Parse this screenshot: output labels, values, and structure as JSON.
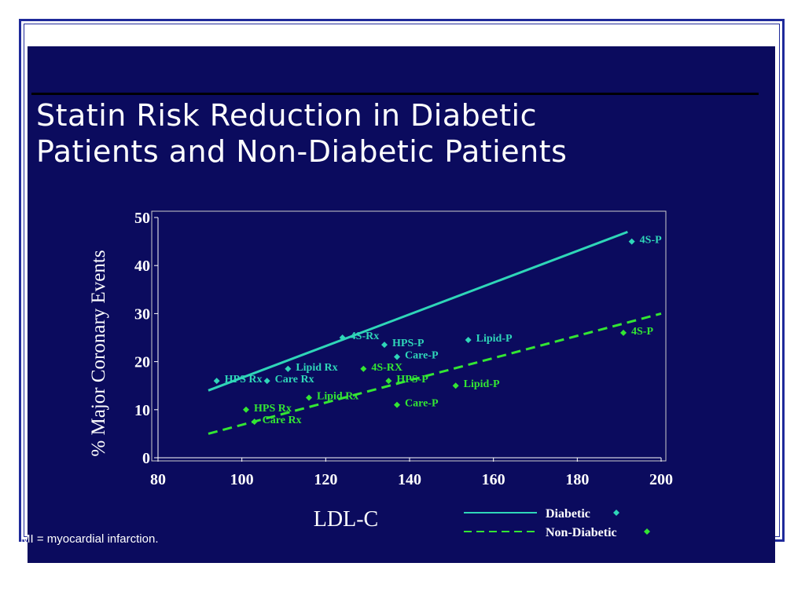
{
  "slide": {
    "title_line1": "Statin Risk Reduction in Diabetic",
    "title_line2": "Patients and Non-Diabetic Patients",
    "footnote": "MI = myocardial infarction."
  },
  "colors": {
    "background": "#0b0b5e",
    "diabetic": "#2fd6b8",
    "non_diabetic": "#33e633",
    "text": "#ffffff"
  },
  "chart_data": {
    "type": "scatter",
    "xlabel": "LDL-C",
    "ylabel": "% Major Coronary Events",
    "xlim": [
      80,
      200
    ],
    "ylim": [
      0,
      50
    ],
    "xticks": [
      80,
      100,
      120,
      140,
      160,
      180,
      200
    ],
    "yticks": [
      0,
      10,
      20,
      30,
      40,
      50
    ],
    "legend_position": "bottom-right",
    "series": [
      {
        "name": "Diabetic",
        "line_style": "solid",
        "points": [
          {
            "label": "HPS Rx",
            "x": 94,
            "y": 16
          },
          {
            "label": "Care Rx",
            "x": 106,
            "y": 16
          },
          {
            "label": "Lipid Rx",
            "x": 111,
            "y": 18.5
          },
          {
            "label": "4S-Rx",
            "x": 124,
            "y": 25
          },
          {
            "label": "HPS-P",
            "x": 134,
            "y": 23.5
          },
          {
            "label": "Care-P",
            "x": 137,
            "y": 21
          },
          {
            "label": "Lipid-P",
            "x": 154,
            "y": 24.5
          },
          {
            "label": "4S-P",
            "x": 193,
            "y": 45
          }
        ],
        "trend": {
          "x": [
            92,
            192
          ],
          "y": [
            14,
            47
          ]
        }
      },
      {
        "name": "Non-Diabetic",
        "line_style": "dashed",
        "points": [
          {
            "label": "HPS Rx",
            "x": 101,
            "y": 10
          },
          {
            "label": "Care Rx",
            "x": 103,
            "y": 7.5
          },
          {
            "label": "Lipid Rx",
            "x": 116,
            "y": 12.5
          },
          {
            "label": "4S-RX",
            "x": 129,
            "y": 18.5
          },
          {
            "label": "HPS-P",
            "x": 135,
            "y": 16
          },
          {
            "label": "Care-P",
            "x": 137,
            "y": 11
          },
          {
            "label": "Lipid-P",
            "x": 151,
            "y": 15
          },
          {
            "label": "4S-P",
            "x": 191,
            "y": 26
          }
        ],
        "trend": {
          "x": [
            92,
            200
          ],
          "y": [
            5,
            30
          ]
        }
      }
    ],
    "legend": [
      {
        "label": "Diabetic"
      },
      {
        "label": "Non-Diabetic"
      }
    ]
  }
}
